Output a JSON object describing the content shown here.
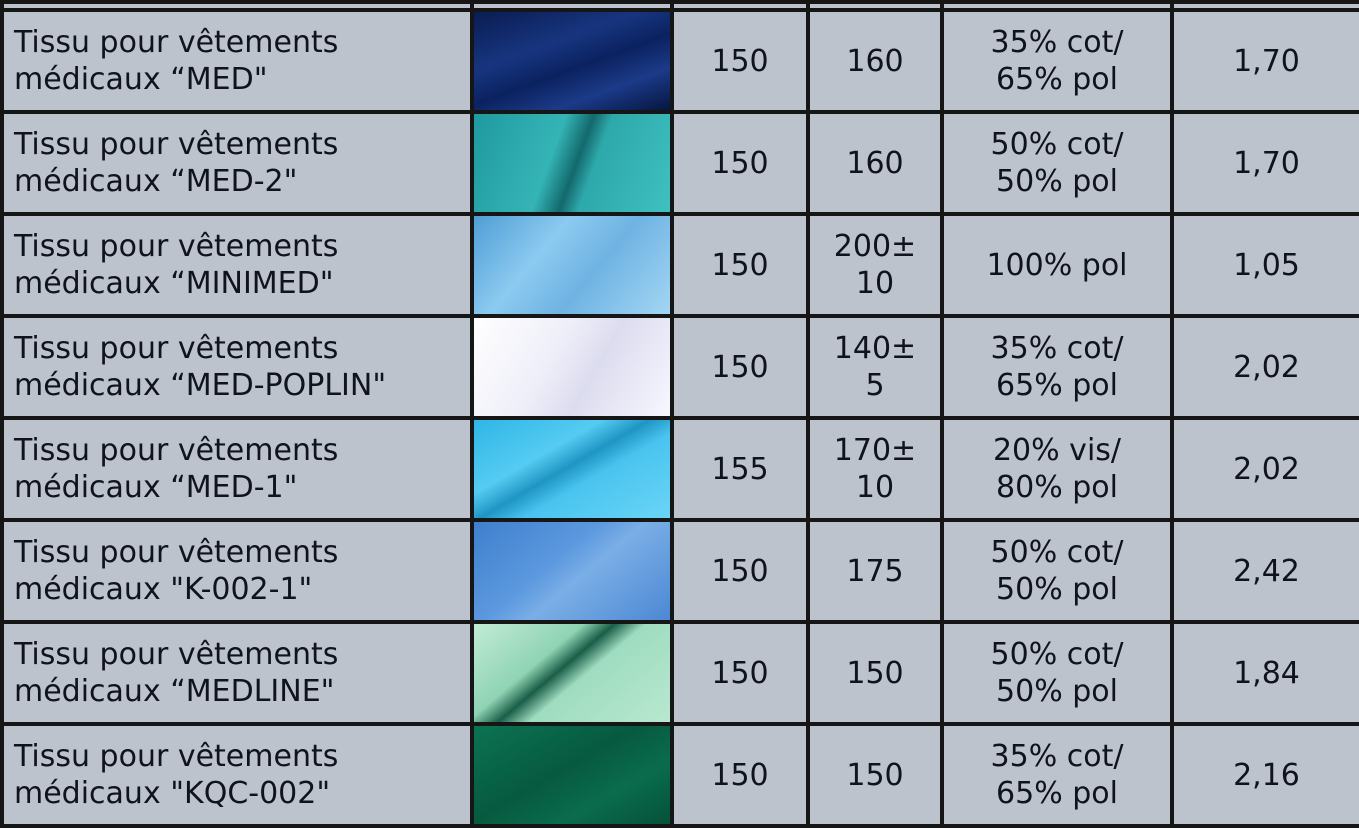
{
  "table": {
    "rows": [
      [
        "Tissu pour vêtements\nmédicaux “MED\"",
        "150",
        "160",
        "35% cot/\n65% pol",
        "1,70"
      ],
      [
        "Tissu pour vêtements\nmédicaux “MED-2\"",
        "150",
        "160",
        "50% cot/\n50% pol",
        "1,70"
      ],
      [
        "Tissu pour vêtements\nmédicaux “MINIMED\"",
        "150",
        "200±\n10",
        "100% pol",
        "1,05"
      ],
      [
        "Tissu pour vêtements\nmédicaux “MED-POPLIN\"",
        "150",
        "140±\n5",
        "35% cot/\n65% pol",
        "2,02"
      ],
      [
        "Tissu pour vêtements\nmédicaux “MED-1\"",
        "155",
        "170±\n10",
        "20% vis/\n80% pol",
        "2,02"
      ],
      [
        "Tissu pour vêtements\nmédicaux \"K-002-1\"",
        "150",
        "175",
        "50% cot/\n50% pol",
        "2,42"
      ],
      [
        "Tissu pour vêtements\nmédicaux “MEDLINE\"",
        "150",
        "150",
        "50% cot/\n50% pol",
        "1,84"
      ],
      [
        "Tissu pour vêtements\nmédicaux \"KQC-002\"",
        "150",
        "150",
        "35% cot/\n65% pol",
        "2,16"
      ]
    ]
  }
}
